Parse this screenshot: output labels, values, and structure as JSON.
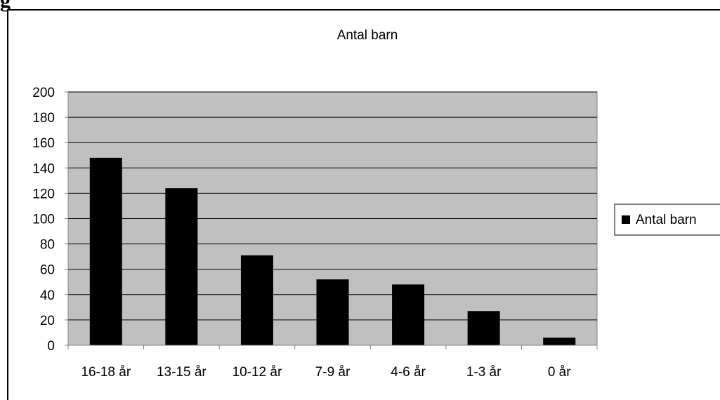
{
  "chart_data": {
    "type": "bar",
    "title": "Antal barn",
    "categories": [
      "16-18 år",
      "13-15 år",
      "10-12 år",
      "7-9 år",
      "4-6 år",
      "1-3 år",
      "0 år"
    ],
    "series": [
      {
        "name": "Antal barn",
        "values": [
          148,
          124,
          71,
          52,
          48,
          27,
          6
        ]
      }
    ],
    "ylim": [
      0,
      200
    ],
    "yticks": [
      "0",
      "20",
      "40",
      "60",
      "80",
      "100",
      "120",
      "140",
      "160",
      "180",
      "200"
    ],
    "xlabel": "",
    "ylabel": "",
    "grid": true,
    "legend": "right",
    "colors": {
      "bar": "#000000",
      "plot_background": "#c0c0c0",
      "gridline": "#000000",
      "axis": "#808080"
    }
  }
}
